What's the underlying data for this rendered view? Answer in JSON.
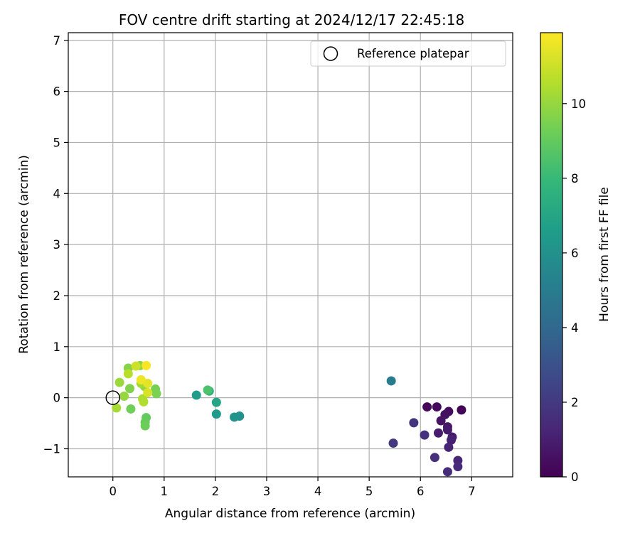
{
  "chart_data": {
    "type": "scatter",
    "title": "FOV centre drift starting at 2024/12/17 22:45:18",
    "xlabel": "Angular distance from reference (arcmin)",
    "ylabel": "Rotation from reference (arcmin)",
    "xlim": [
      -0.87,
      7.8
    ],
    "ylim": [
      -1.55,
      7.15
    ],
    "xticks": [
      "0",
      "1",
      "2",
      "3",
      "4",
      "5",
      "6",
      "7"
    ],
    "yticks": [
      "−1",
      "0",
      "1",
      "2",
      "3",
      "4",
      "5",
      "6",
      "7"
    ],
    "grid": true,
    "legend": {
      "placement": "top-right",
      "entries": [
        "Reference platepar"
      ]
    },
    "reference_point": {
      "x": 0,
      "y": 0
    },
    "colorbar": {
      "label": "Hours from first FF file",
      "colormap": "viridis",
      "range": [
        0,
        11.9
      ],
      "ticks": [
        "0",
        "2",
        "4",
        "6",
        "8",
        "10"
      ]
    },
    "points": [
      {
        "x": 6.8,
        "y": -0.24,
        "t": 0.1
      },
      {
        "x": 6.13,
        "y": -0.18,
        "t": 0.2
      },
      {
        "x": 6.32,
        "y": -0.18,
        "t": 0.3
      },
      {
        "x": 6.55,
        "y": -0.27,
        "t": 0.4
      },
      {
        "x": 6.48,
        "y": -0.33,
        "t": 0.5
      },
      {
        "x": 6.4,
        "y": -0.45,
        "t": 0.6
      },
      {
        "x": 6.53,
        "y": -0.57,
        "t": 0.7
      },
      {
        "x": 6.53,
        "y": -0.63,
        "t": 0.8
      },
      {
        "x": 6.35,
        "y": -0.69,
        "t": 0.9
      },
      {
        "x": 6.62,
        "y": -0.77,
        "t": 1.0
      },
      {
        "x": 6.6,
        "y": -0.83,
        "t": 1.1
      },
      {
        "x": 6.55,
        "y": -0.97,
        "t": 1.2
      },
      {
        "x": 6.73,
        "y": -1.23,
        "t": 1.3
      },
      {
        "x": 6.73,
        "y": -1.35,
        "t": 1.4
      },
      {
        "x": 6.53,
        "y": -1.45,
        "t": 1.5
      },
      {
        "x": 6.28,
        "y": -1.17,
        "t": 1.6
      },
      {
        "x": 6.08,
        "y": -0.73,
        "t": 1.7
      },
      {
        "x": 5.87,
        "y": -0.49,
        "t": 1.8
      },
      {
        "x": 5.47,
        "y": -0.89,
        "t": 2.0
      },
      {
        "x": 5.43,
        "y": 0.33,
        "t": 5.0
      },
      {
        "x": 2.47,
        "y": -0.36,
        "t": 6.0
      },
      {
        "x": 2.37,
        "y": -0.38,
        "t": 6.1
      },
      {
        "x": 2.02,
        "y": -0.32,
        "t": 6.4
      },
      {
        "x": 1.63,
        "y": 0.05,
        "t": 6.5
      },
      {
        "x": 2.02,
        "y": -0.09,
        "t": 7.0
      },
      {
        "x": 1.88,
        "y": 0.13,
        "t": 7.5
      },
      {
        "x": 1.85,
        "y": 0.15,
        "t": 8.5
      },
      {
        "x": 0.65,
        "y": -0.39,
        "t": 9.0
      },
      {
        "x": 0.63,
        "y": -0.48,
        "t": 9.1
      },
      {
        "x": 0.63,
        "y": -0.55,
        "t": 9.2
      },
      {
        "x": 0.35,
        "y": -0.22,
        "t": 9.3
      },
      {
        "x": 0.83,
        "y": 0.17,
        "t": 9.4
      },
      {
        "x": 0.85,
        "y": 0.08,
        "t": 9.5
      },
      {
        "x": 0.33,
        "y": 0.18,
        "t": 9.6
      },
      {
        "x": 0.3,
        "y": 0.58,
        "t": 9.7
      },
      {
        "x": 0.53,
        "y": 0.63,
        "t": 9.8
      },
      {
        "x": 0.62,
        "y": 0.22,
        "t": 9.9
      },
      {
        "x": 0.22,
        "y": 0.03,
        "t": 10.0
      },
      {
        "x": 0.13,
        "y": 0.3,
        "t": 10.1
      },
      {
        "x": 0.55,
        "y": 0.28,
        "t": 10.2
      },
      {
        "x": 0.07,
        "y": -0.2,
        "t": 10.3
      },
      {
        "x": 0.58,
        "y": -0.02,
        "t": 10.4
      },
      {
        "x": 0.6,
        "y": -0.08,
        "t": 10.5
      },
      {
        "x": 0.3,
        "y": 0.47,
        "t": 10.6
      },
      {
        "x": 0.45,
        "y": 0.62,
        "t": 11.0
      },
      {
        "x": 0.68,
        "y": 0.1,
        "t": 11.2
      },
      {
        "x": 0.68,
        "y": 0.28,
        "t": 11.4
      },
      {
        "x": 0.55,
        "y": 0.35,
        "t": 11.6
      },
      {
        "x": 0.65,
        "y": 0.63,
        "t": 11.8
      }
    ]
  }
}
